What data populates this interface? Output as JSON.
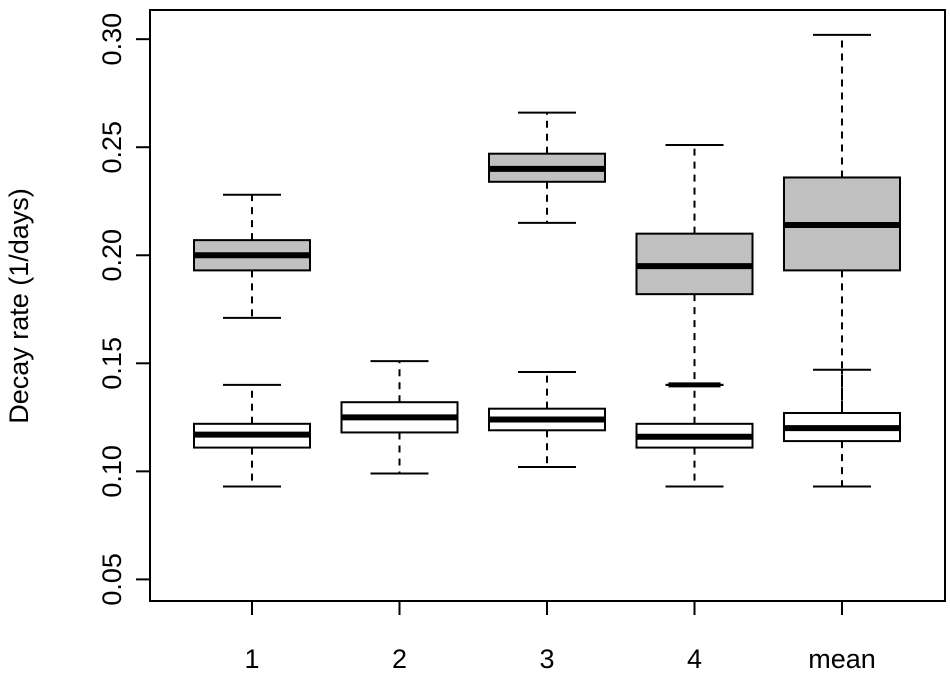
{
  "chart_data": {
    "type": "boxplot",
    "ylabel": "Decay rate (1/days)",
    "ylim": [
      0.04,
      0.3135
    ],
    "y_ticks": [
      "0.05",
      "0.10",
      "0.15",
      "0.20",
      "0.25",
      "0.30"
    ],
    "categories": [
      "1",
      "2",
      "3",
      "4",
      "mean"
    ],
    "grid": false,
    "legend": "none",
    "colors": {
      "gray_fill": "#c0c0c0",
      "white_fill": "#ffffff",
      "stroke": "#000000"
    },
    "series": [
      {
        "fill": "#c0c0c0",
        "boxes": [
          {
            "category": "1",
            "whisker_low": 0.171,
            "q1": 0.193,
            "median": 0.2,
            "q3": 0.207,
            "whisker_high": 0.228
          },
          {
            "category": "3",
            "whisker_low": 0.215,
            "q1": 0.234,
            "median": 0.24,
            "q3": 0.247,
            "whisker_high": 0.266
          },
          {
            "category": "4",
            "whisker_low": 0.14,
            "q1": 0.182,
            "median": 0.195,
            "q3": 0.21,
            "whisker_high": 0.251,
            "outlier_band": 0.14
          },
          {
            "category": "mean",
            "whisker_low": 0.127,
            "q1": 0.193,
            "median": 0.214,
            "q3": 0.236,
            "whisker_high": 0.302
          }
        ]
      },
      {
        "fill": "#ffffff",
        "boxes": [
          {
            "category": "1",
            "whisker_low": 0.093,
            "q1": 0.111,
            "median": 0.117,
            "q3": 0.122,
            "whisker_high": 0.14
          },
          {
            "category": "2",
            "whisker_low": 0.099,
            "q1": 0.118,
            "median": 0.125,
            "q3": 0.132,
            "whisker_high": 0.151
          },
          {
            "category": "3",
            "whisker_low": 0.102,
            "q1": 0.119,
            "median": 0.124,
            "q3": 0.129,
            "whisker_high": 0.146
          },
          {
            "category": "4",
            "whisker_low": 0.093,
            "q1": 0.111,
            "median": 0.116,
            "q3": 0.122,
            "whisker_high": 0.14
          },
          {
            "category": "mean",
            "whisker_low": 0.093,
            "q1": 0.114,
            "median": 0.12,
            "q3": 0.127,
            "whisker_high": 0.147
          }
        ]
      }
    ]
  }
}
